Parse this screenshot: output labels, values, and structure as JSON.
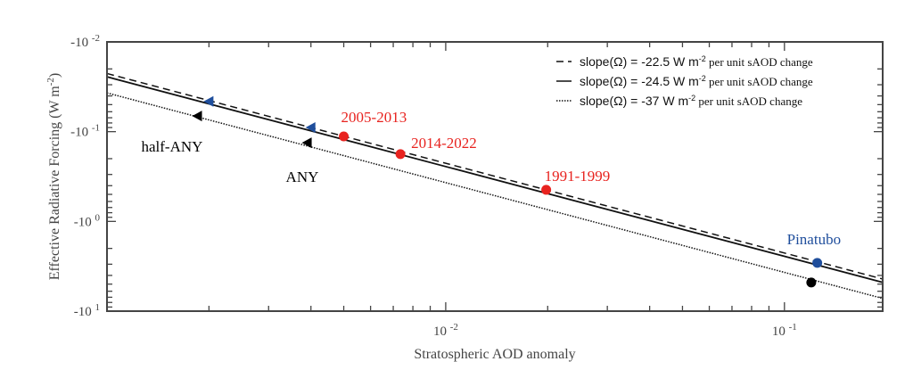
{
  "chart_data": {
    "type": "scatter",
    "xlabel": "Stratospheric AOD anomaly",
    "ylabel": "Effective Radiative Forcing (W m-2)",
    "xscale": "log",
    "yscale": "log (negative)",
    "xlim": [
      0.001,
      0.195
    ],
    "ylim": [
      -0.01,
      -10
    ],
    "xticks": [
      {
        "v": 0.01,
        "base": "10",
        "exp": "-2"
      },
      {
        "v": 0.1,
        "base": "10",
        "exp": "-1"
      }
    ],
    "yticks": [
      {
        "v": 0.01,
        "base": "-10",
        "exp": "-2"
      },
      {
        "v": 0.1,
        "base": "-10",
        "exp": "-1"
      },
      {
        "v": 1,
        "base": "-10",
        "exp": "0"
      },
      {
        "v": 10,
        "base": "-10",
        "exp": "1"
      }
    ],
    "lines": [
      {
        "slope": -22.5,
        "style": "dashed",
        "legend_main": "slope(Ω) = -22.5 W m",
        "legend_exp": "-2",
        "legend_tail": " per unit sAOD change"
      },
      {
        "slope": -24.5,
        "style": "solid",
        "legend_main": "slope(Ω) = -24.5 W m",
        "legend_exp": "-2",
        "legend_tail": " per unit sAOD change"
      },
      {
        "slope": -37,
        "style": "dotted",
        "legend_main": "slope(Ω) = -37 W m",
        "legend_exp": "-2",
        "legend_tail": " per unit sAOD change"
      }
    ],
    "legend_position": "top-right",
    "points": [
      {
        "x": 0.002,
        "y": -0.046,
        "marker": "triangle-left",
        "color": "#1f4e9c"
      },
      {
        "x": 0.004,
        "y": -0.09,
        "marker": "triangle-left",
        "color": "#1f4e9c"
      },
      {
        "x": 0.00185,
        "y": -0.067,
        "marker": "triangle-left",
        "color": "#000000",
        "label": "half-ANY"
      },
      {
        "x": 0.0039,
        "y": -0.133,
        "marker": "triangle-left",
        "color": "#000000",
        "label": "ANY"
      },
      {
        "x": 0.005,
        "y": -0.113,
        "marker": "circle",
        "color": "#e8231f",
        "label": "2005-2013"
      },
      {
        "x": 0.00735,
        "y": -0.178,
        "marker": "circle",
        "color": "#e8231f",
        "label": "2014-2022"
      },
      {
        "x": 0.0198,
        "y": -0.445,
        "marker": "circle",
        "color": "#e8231f",
        "label": "1991-1999"
      },
      {
        "x": 0.125,
        "y": -2.9,
        "marker": "circle",
        "color": "#1f4e9c",
        "label": "Pinatubo"
      },
      {
        "x": 0.12,
        "y": -4.8,
        "marker": "circle",
        "color": "#000000"
      }
    ]
  }
}
